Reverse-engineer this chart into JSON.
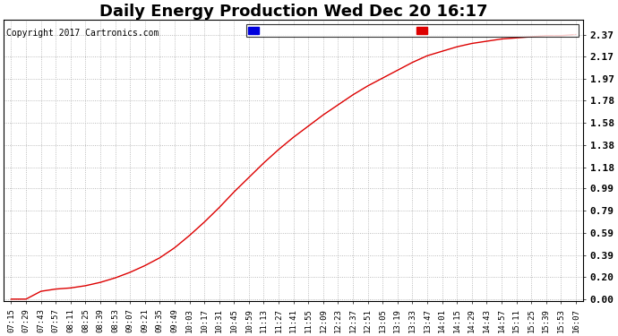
{
  "title": "Daily Energy Production Wed Dec 20 16:17",
  "copyright_text": "Copyright 2017 Cartronics.com",
  "offpeak_color": "#0000dd",
  "onpeak_color": "#dd0000",
  "line_color": "#dd0000",
  "background_color": "#ffffff",
  "plot_bg_color": "#ffffff",
  "grid_color": "#aaaaaa",
  "yticks": [
    0.0,
    0.2,
    0.39,
    0.59,
    0.79,
    0.99,
    1.18,
    1.38,
    1.58,
    1.78,
    1.97,
    2.17,
    2.37
  ],
  "ymin": -0.02,
  "ymax": 2.5,
  "xtick_labels": [
    "07:15",
    "07:29",
    "07:43",
    "07:57",
    "08:11",
    "08:25",
    "08:39",
    "08:53",
    "09:07",
    "09:21",
    "09:35",
    "09:49",
    "10:03",
    "10:17",
    "10:31",
    "10:45",
    "10:59",
    "11:13",
    "11:27",
    "11:41",
    "11:55",
    "12:09",
    "12:23",
    "12:37",
    "12:51",
    "13:05",
    "13:19",
    "13:33",
    "13:47",
    "14:01",
    "14:15",
    "14:29",
    "14:43",
    "14:57",
    "15:11",
    "15:25",
    "15:39",
    "15:53",
    "16:07"
  ],
  "title_fontsize": 13,
  "tick_fontsize": 6.5,
  "ytick_fontsize": 8,
  "copyright_fontsize": 7,
  "legend_fontsize": 7,
  "y_data": [
    0.0,
    0.0,
    0.07,
    0.09,
    0.1,
    0.12,
    0.15,
    0.19,
    0.24,
    0.3,
    0.37,
    0.46,
    0.57,
    0.69,
    0.82,
    0.96,
    1.09,
    1.22,
    1.34,
    1.45,
    1.55,
    1.65,
    1.74,
    1.83,
    1.91,
    1.98,
    2.05,
    2.12,
    2.18,
    2.22,
    2.26,
    2.29,
    2.31,
    2.33,
    2.34,
    2.35,
    2.36,
    2.36,
    2.37
  ]
}
